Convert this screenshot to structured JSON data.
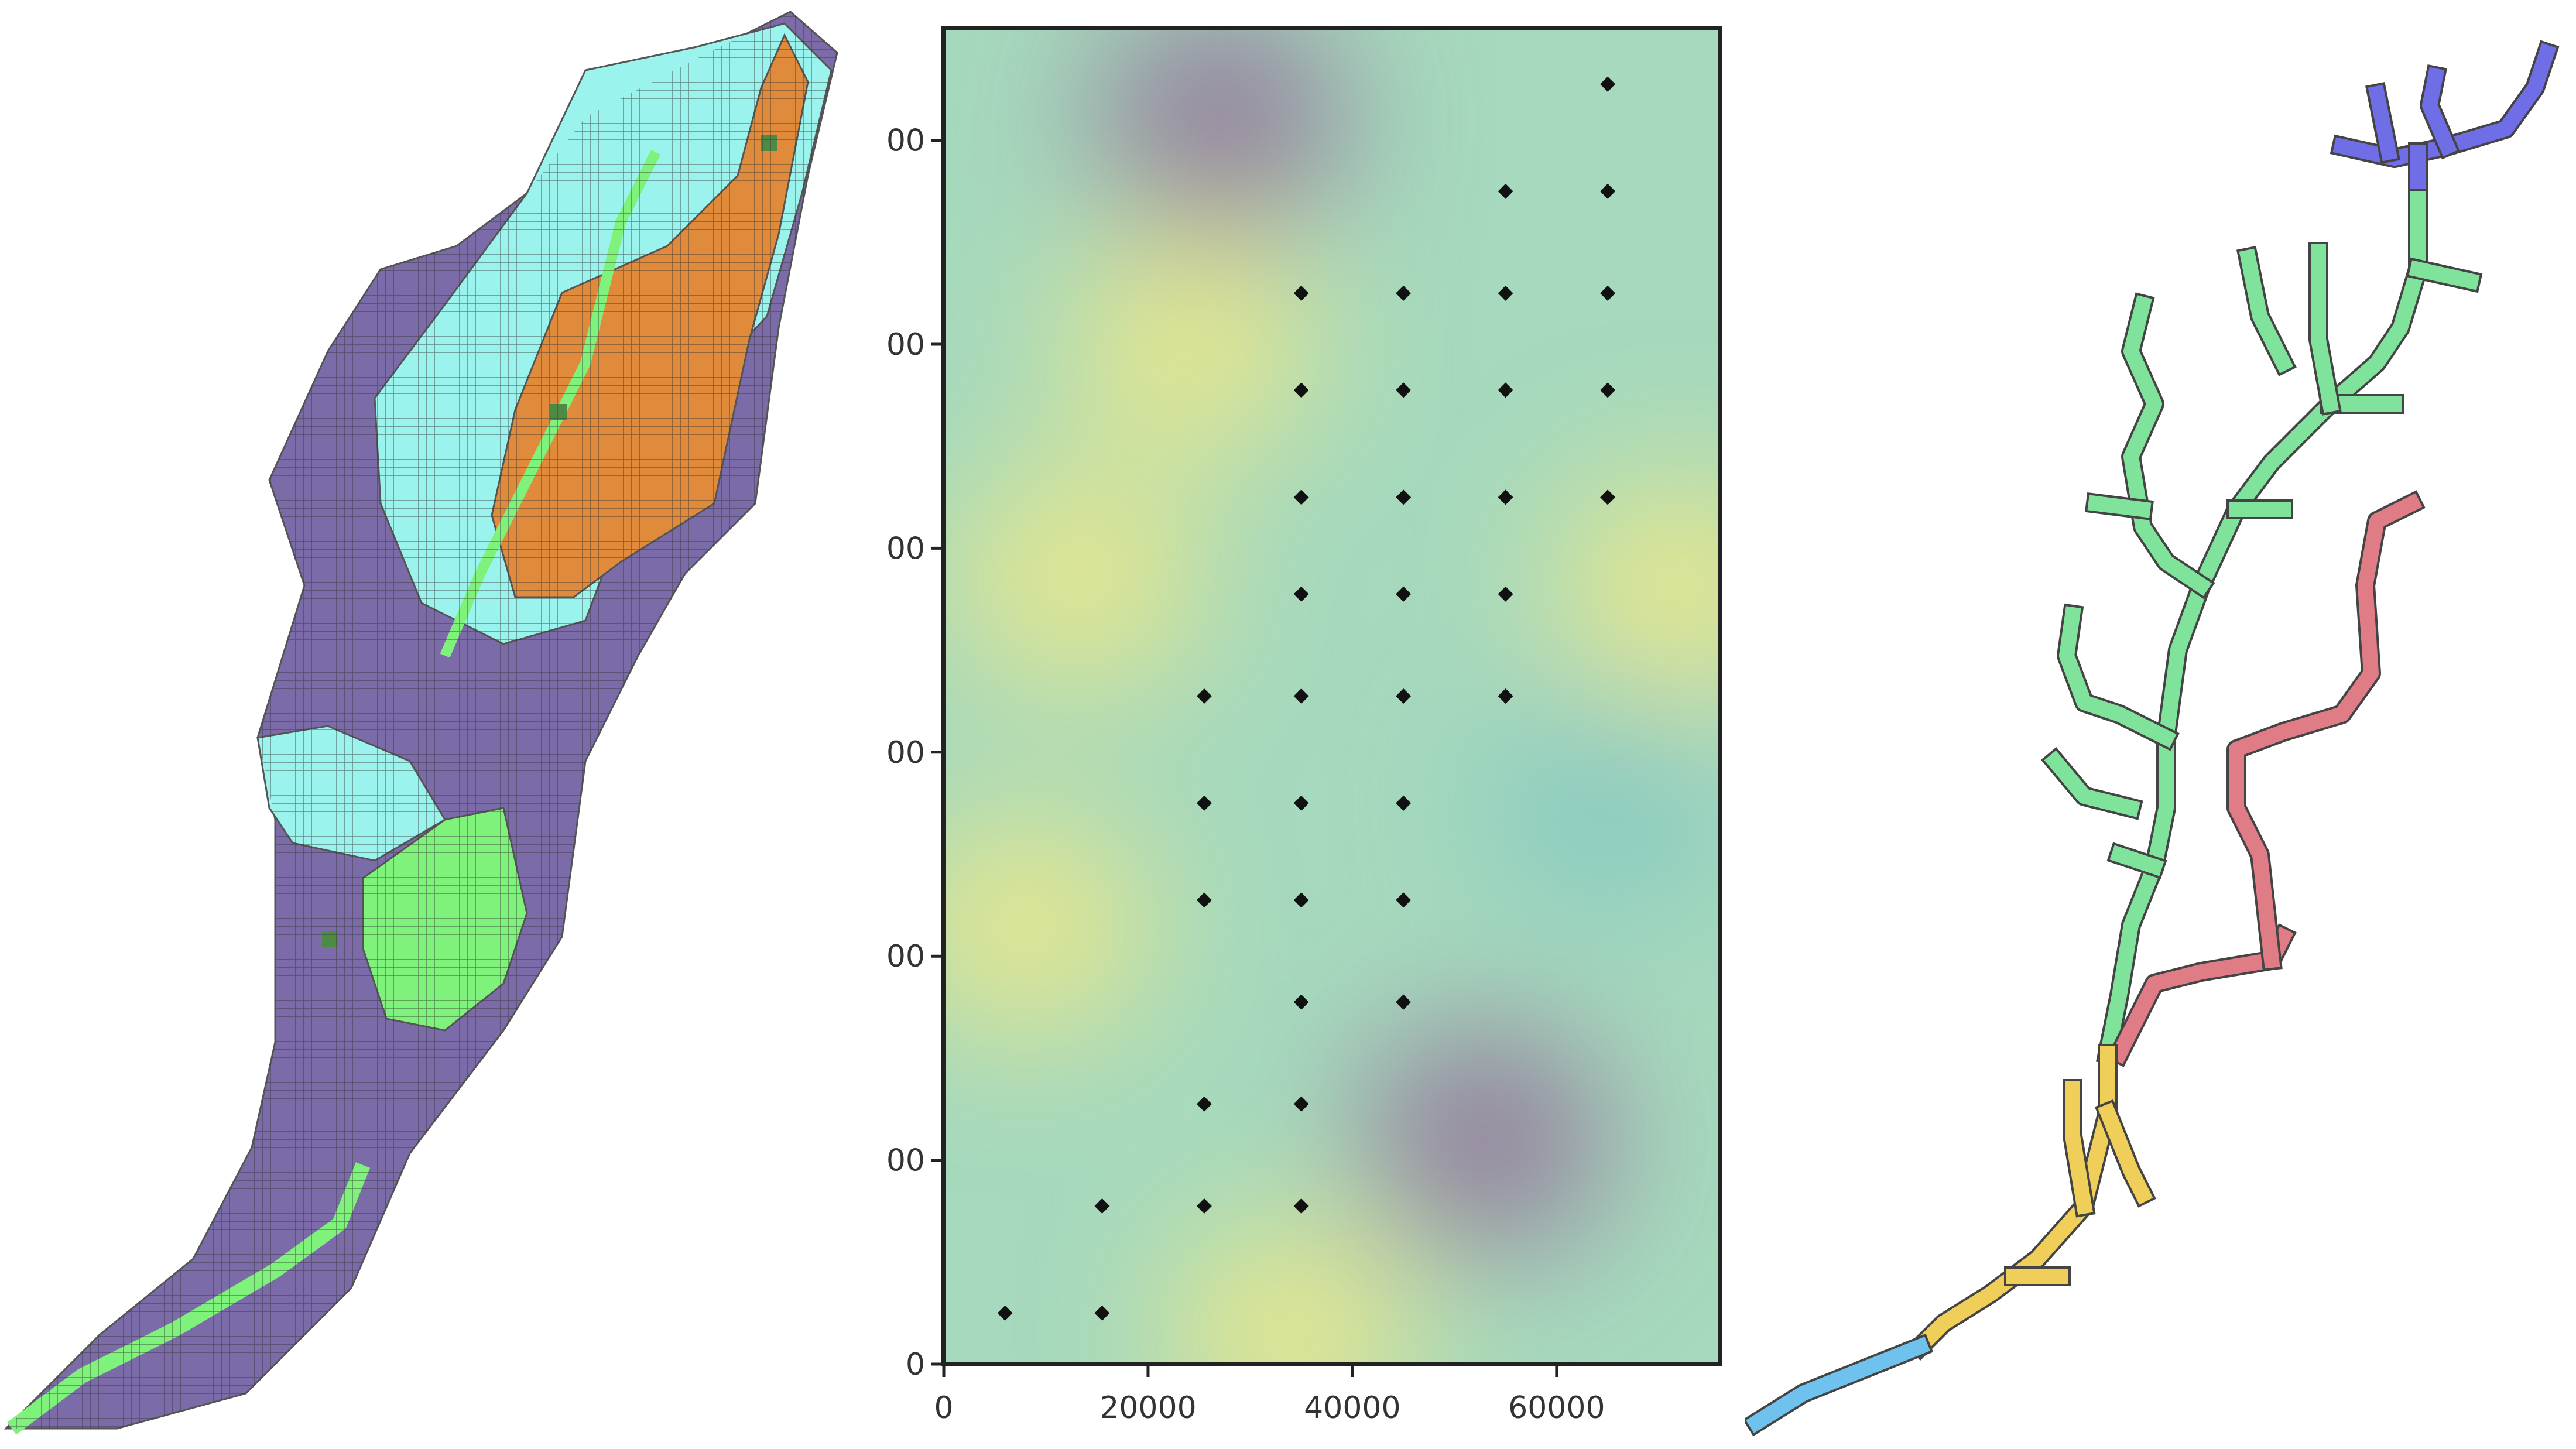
{
  "figure_background": "#ffffff",
  "left_map": {
    "legend": [],
    "colors": {
      "purple": "#7b6ba8",
      "cyan": "#9af3ec",
      "orange": "#e08a3c",
      "light_green": "#7ef27a",
      "dark_green": "#4e8a45",
      "grid_line": "#555555"
    }
  },
  "right_network": {
    "colors": {
      "blue_top": "#6f6ee6",
      "green": "#7fe39b",
      "red": "#e07c86",
      "yellow": "#efcf5a",
      "light_blue": "#6fc2ee",
      "outline": "#444444"
    }
  },
  "chart_data": {
    "type": "scatter",
    "title": "",
    "xlabel": "",
    "ylabel": "",
    "xlim": [
      0,
      76000
    ],
    "ylim": [
      0,
      131000
    ],
    "x_ticks": [
      0,
      20000,
      40000,
      60000
    ],
    "x_tick_labels": [
      "0",
      "20000",
      "40000",
      "60000"
    ],
    "y_ticks": [
      0,
      20000,
      40000,
      60000,
      80000,
      100000,
      120000
    ],
    "y_tick_labels": [
      "0",
      "00",
      "00",
      "00",
      "00",
      "00",
      "00"
    ],
    "grid": false,
    "background_field": {
      "colormap": "viridis-light",
      "colors": {
        "base": "#a6d9bd",
        "yellow": "#ede887",
        "purple": "#94779b",
        "teal": "#88c9c2"
      },
      "notable_regions": [
        {
          "kind": "low",
          "x": 27000,
          "y": 122000,
          "color": "purple"
        },
        {
          "kind": "low",
          "x": 53000,
          "y": 22000,
          "color": "purple"
        },
        {
          "kind": "high",
          "x": 13000,
          "y": 77000,
          "color": "yellow"
        },
        {
          "kind": "high",
          "x": 72000,
          "y": 76000,
          "color": "yellow"
        },
        {
          "kind": "high",
          "x": 34000,
          "y": 3000,
          "color": "yellow"
        },
        {
          "kind": "high",
          "x": 24000,
          "y": 100000,
          "color": "yellow"
        },
        {
          "kind": "high",
          "x": 8000,
          "y": 43000,
          "color": "yellow"
        },
        {
          "kind": "low",
          "x": 65000,
          "y": 55000,
          "color": "teal"
        }
      ]
    },
    "series": [
      {
        "marker": "diamond",
        "color": "#111111",
        "points": [
          [
            6000,
            5000
          ],
          [
            15500,
            5000
          ],
          [
            15500,
            15500
          ],
          [
            25500,
            15500
          ],
          [
            35000,
            15500
          ],
          [
            25500,
            25500
          ],
          [
            35000,
            25500
          ],
          [
            35000,
            35500
          ],
          [
            45000,
            35500
          ],
          [
            25500,
            45500
          ],
          [
            35000,
            45500
          ],
          [
            45000,
            45500
          ],
          [
            25500,
            55000
          ],
          [
            35000,
            55000
          ],
          [
            45000,
            55000
          ],
          [
            25500,
            65500
          ],
          [
            35000,
            65500
          ],
          [
            45000,
            65500
          ],
          [
            55000,
            65500
          ],
          [
            35000,
            75500
          ],
          [
            45000,
            75500
          ],
          [
            55000,
            75500
          ],
          [
            35000,
            85000
          ],
          [
            45000,
            85000
          ],
          [
            55000,
            85000
          ],
          [
            65000,
            85000
          ],
          [
            35000,
            95500
          ],
          [
            45000,
            95500
          ],
          [
            55000,
            95500
          ],
          [
            65000,
            95500
          ],
          [
            35000,
            105000
          ],
          [
            45000,
            105000
          ],
          [
            55000,
            105000
          ],
          [
            65000,
            105000
          ],
          [
            55000,
            115000
          ],
          [
            65000,
            115000
          ],
          [
            65000,
            125500
          ]
        ]
      }
    ]
  }
}
